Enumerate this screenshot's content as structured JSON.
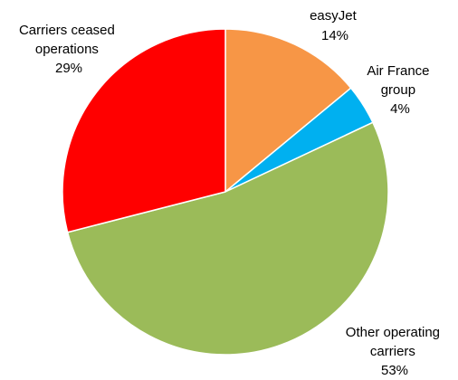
{
  "chart_data": {
    "type": "pie",
    "title": "",
    "slices": [
      {
        "label_lines": [
          "easyJet"
        ],
        "percent_label": "14%",
        "value": 14,
        "color": "#F79646"
      },
      {
        "label_lines": [
          "Air France",
          "group"
        ],
        "percent_label": "4%",
        "value": 4,
        "color": "#00B0F0"
      },
      {
        "label_lines": [
          "Other operating",
          "carriers"
        ],
        "percent_label": "53%",
        "value": 53,
        "color": "#9BBB59"
      },
      {
        "label_lines": [
          "Carriers ceased",
          "operations"
        ],
        "percent_label": "29%",
        "value": 29,
        "color": "#FF0000"
      }
    ],
    "start_angle_deg": 0,
    "direction": "clockwise",
    "legend": "none"
  }
}
